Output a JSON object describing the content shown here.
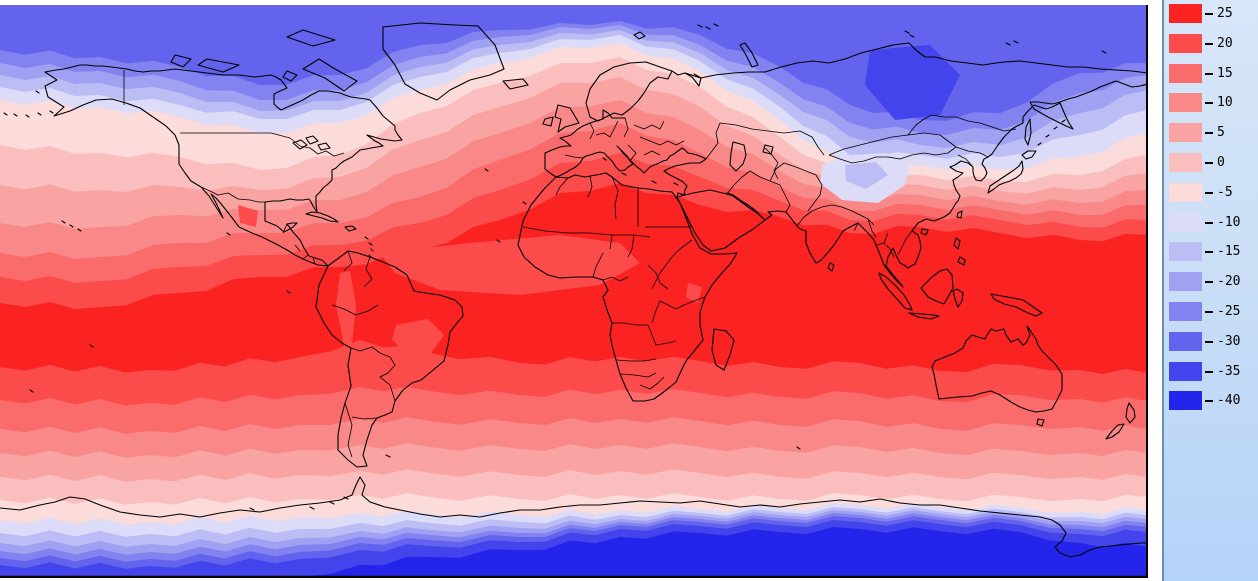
{
  "figure": {
    "kind": "filled-contour world temperature map with legend"
  },
  "legend": {
    "items": [
      {
        "label": "25",
        "color": "#fb2222"
      },
      {
        "label": "20",
        "color": "#fb4b4b"
      },
      {
        "label": "15",
        "color": "#fa6b6b"
      },
      {
        "label": "10",
        "color": "#f98989"
      },
      {
        "label": "5",
        "color": "#f9a3a3"
      },
      {
        "label": "0",
        "color": "#fabebe"
      },
      {
        "label": "-5",
        "color": "#fcdbdb"
      },
      {
        "label": "-10",
        "color": "#dcdcf8"
      },
      {
        "label": "-15",
        "color": "#bdbdf5"
      },
      {
        "label": "-20",
        "color": "#a1a1f3"
      },
      {
        "label": "-25",
        "color": "#8282f0"
      },
      {
        "label": "-30",
        "color": "#6363ee"
      },
      {
        "label": "-35",
        "color": "#4444ec"
      },
      {
        "label": "-40",
        "color": "#2424ea"
      }
    ],
    "panel": {
      "bg_top": "#d8e6f9",
      "bg_mid": "#c9def6",
      "bg_bottom": "#b5d2f9",
      "border_color": "#6b8fb0"
    }
  },
  "map": {
    "coastline_color": "#000000",
    "frame_color": "#000000",
    "palette": {
      "25": "#fb2222",
      "20": "#fb4b4b",
      "15": "#fa6b6b",
      "10": "#f98989",
      "5": "#f9a3a3",
      "0": "#fabebe",
      "-5": "#fcdbdb",
      "-10": "#dcdcf8",
      "-15": "#bdbdf5",
      "-20": "#a1a1f3",
      "-25": "#8282f0",
      "-30": "#6363ee",
      "-35": "#4444ec",
      "-40": "#2424ea"
    }
  },
  "chart_data": {
    "type": "heatmap",
    "title": "",
    "legend_position": "right",
    "legend_tick_values": [
      25,
      20,
      15,
      10,
      5,
      0,
      -5,
      -10,
      -15,
      -20,
      -25,
      -30,
      -35,
      -40
    ],
    "legend_colors": [
      "#fb2222",
      "#fb4b4b",
      "#fa6b6b",
      "#f98989",
      "#f9a3a3",
      "#fabebe",
      "#fcdbdb",
      "#dcdcf8",
      "#bdbdf5",
      "#a1a1f3",
      "#8282f0",
      "#6363ee",
      "#4444ec",
      "#2424ea"
    ],
    "value_range": [
      -40,
      25
    ],
    "pattern": "warm (25) band across tropics, cooling poleward; deep blue (-30 to -40) over Arctic, Siberia and Antarctica"
  }
}
